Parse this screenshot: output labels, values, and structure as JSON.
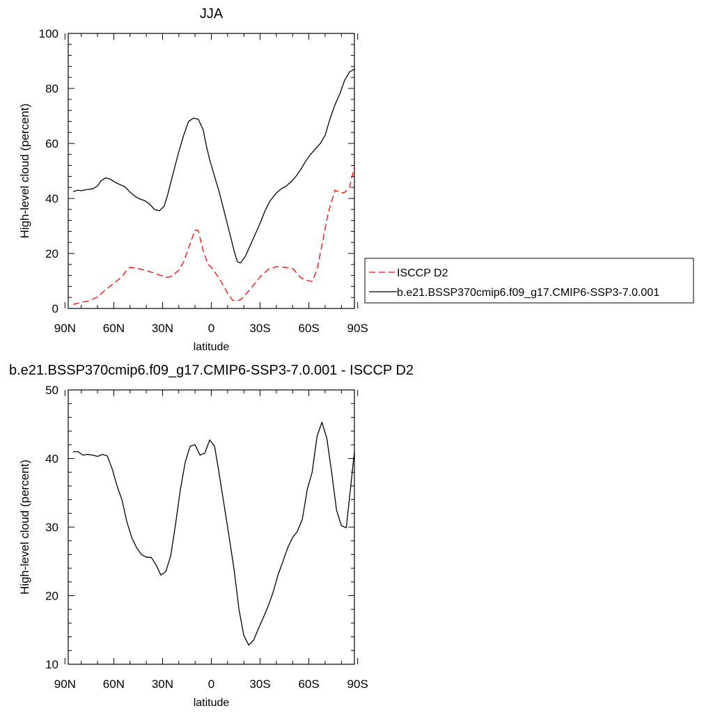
{
  "colors": {
    "isccp": "#ff0000",
    "model": "#000000"
  },
  "chart_data": [
    {
      "type": "line",
      "title": "JJA",
      "xlabel": "latitude",
      "ylabel": "High-level cloud (percent)",
      "xlim": [
        -88,
        88
      ],
      "ylim": [
        0,
        100
      ],
      "xticks": [
        -90,
        -60,
        -30,
        0,
        30,
        60,
        90
      ],
      "xtick_labels": [
        "90N",
        "60N",
        "30N",
        "0",
        "30S",
        "60S",
        "90S"
      ],
      "yticks": [
        0,
        20,
        40,
        60,
        80,
        100
      ],
      "ytick_labels": [
        "0",
        "20",
        "40",
        "60",
        "80",
        "100"
      ],
      "legend": {
        "placement": "right",
        "entries": [
          "ISCCP D2",
          "b.e21.BSSP370cmip6.f09_g17.CMIP6-SSP3-7.0.001"
        ]
      },
      "series": [
        {
          "name": "ISCCP D2",
          "style": "dashed",
          "x": [
            -85,
            -80,
            -75,
            -70,
            -65,
            -60,
            -55,
            -52,
            -50,
            -45,
            -40,
            -35,
            -30,
            -27,
            -24,
            -20,
            -17,
            -14,
            -10,
            -8,
            -5,
            -2,
            0,
            5,
            10,
            13,
            15,
            18,
            21,
            25,
            30,
            35,
            40,
            45,
            50,
            55,
            58,
            62,
            65,
            68,
            72,
            76,
            80,
            82,
            85,
            88
          ],
          "values": [
            1.5,
            2.2,
            2.8,
            4.2,
            6.8,
            9.2,
            11.5,
            14,
            15,
            14.5,
            13.8,
            12.8,
            11.8,
            11.3,
            11.8,
            14,
            17,
            22,
            28.5,
            28.3,
            21,
            16,
            15,
            10.8,
            5.5,
            3,
            2.7,
            3.2,
            5,
            7.8,
            11.5,
            14.2,
            15.2,
            15,
            14.5,
            11.2,
            10.3,
            9.8,
            14,
            23,
            35,
            43,
            42,
            42.2,
            44,
            51.5
          ]
        },
        {
          "name": "b.e21.BSSP370cmip6.f09_g17.CMIP6-SSP3-7.0.001",
          "style": "solid",
          "x": [
            -85,
            -82,
            -80,
            -77,
            -73,
            -70,
            -68,
            -65,
            -62,
            -59,
            -56,
            -53,
            -50,
            -47,
            -44,
            -41,
            -38,
            -35,
            -32,
            -29,
            -27,
            -24,
            -20,
            -17,
            -14,
            -11,
            -8,
            -5,
            -3,
            -1,
            2,
            5,
            8,
            11,
            14,
            16,
            18,
            21,
            24,
            27,
            30,
            33,
            36,
            40,
            43,
            46,
            49,
            52,
            55,
            58,
            61,
            64,
            67,
            70,
            73,
            76,
            79,
            82,
            85,
            88
          ],
          "values": [
            42.5,
            43,
            42.8,
            43.2,
            43.5,
            44.5,
            46.3,
            47.5,
            47,
            45.8,
            45,
            44.2,
            42.3,
            40.8,
            39.8,
            39.2,
            38,
            36,
            35.5,
            37.2,
            41,
            48,
            57,
            63,
            68,
            69.2,
            68.8,
            65,
            59,
            54,
            48,
            42,
            35,
            28,
            21,
            17,
            16.5,
            19,
            23,
            27,
            31,
            35.5,
            39,
            42,
            43.5,
            44.5,
            46,
            48,
            50.5,
            53.5,
            56,
            58,
            60,
            63,
            69,
            74,
            78,
            83,
            86,
            87
          ]
        }
      ]
    },
    {
      "type": "line",
      "title": "b.e21.BSSP370cmip6.f09_g17.CMIP6-SSP3-7.0.001 - ISCCP D2",
      "xlabel": "latitude",
      "ylabel": "High-level cloud (percent)",
      "xlim": [
        -88,
        88
      ],
      "ylim": [
        10,
        50
      ],
      "xticks": [
        -90,
        -60,
        -30,
        0,
        30,
        60,
        90
      ],
      "xtick_labels": [
        "90N",
        "60N",
        "30N",
        "0",
        "30S",
        "60S",
        "90S"
      ],
      "yticks": [
        10,
        20,
        30,
        40,
        50
      ],
      "ytick_labels": [
        "10",
        "20",
        "30",
        "40",
        "50"
      ],
      "series": [
        {
          "style": "solid",
          "x": [
            -85,
            -82,
            -79,
            -76,
            -73,
            -70,
            -67,
            -64,
            -61,
            -58,
            -55,
            -52,
            -49,
            -46,
            -43,
            -40,
            -37,
            -34,
            -31,
            -28,
            -25,
            -22,
            -19,
            -16,
            -13,
            -10,
            -7,
            -4,
            -1,
            2,
            5,
            8,
            11,
            14,
            17,
            20,
            23,
            26,
            29,
            32,
            35,
            38,
            41,
            44,
            47,
            50,
            53,
            56,
            59,
            62,
            65,
            68,
            71,
            74,
            77,
            80,
            83,
            86,
            88
          ],
          "values": [
            41,
            41,
            40.5,
            40.6,
            40.5,
            40.3,
            40.6,
            40.4,
            38.5,
            36,
            34,
            30.8,
            28.5,
            27,
            26,
            25.6,
            25.6,
            24.5,
            23,
            23.5,
            25.8,
            30.4,
            35.5,
            39.5,
            41.8,
            42,
            40.5,
            40.8,
            42.7,
            41.8,
            37.5,
            33,
            28.5,
            23.8,
            18,
            14.2,
            12.8,
            13.5,
            15.2,
            16.8,
            18.5,
            20.5,
            23,
            25,
            27,
            28.5,
            29.4,
            31.2,
            35.5,
            38,
            43.2,
            45.3,
            43,
            38,
            32.5,
            30.2,
            29.9,
            36.5,
            41
          ]
        }
      ]
    }
  ]
}
